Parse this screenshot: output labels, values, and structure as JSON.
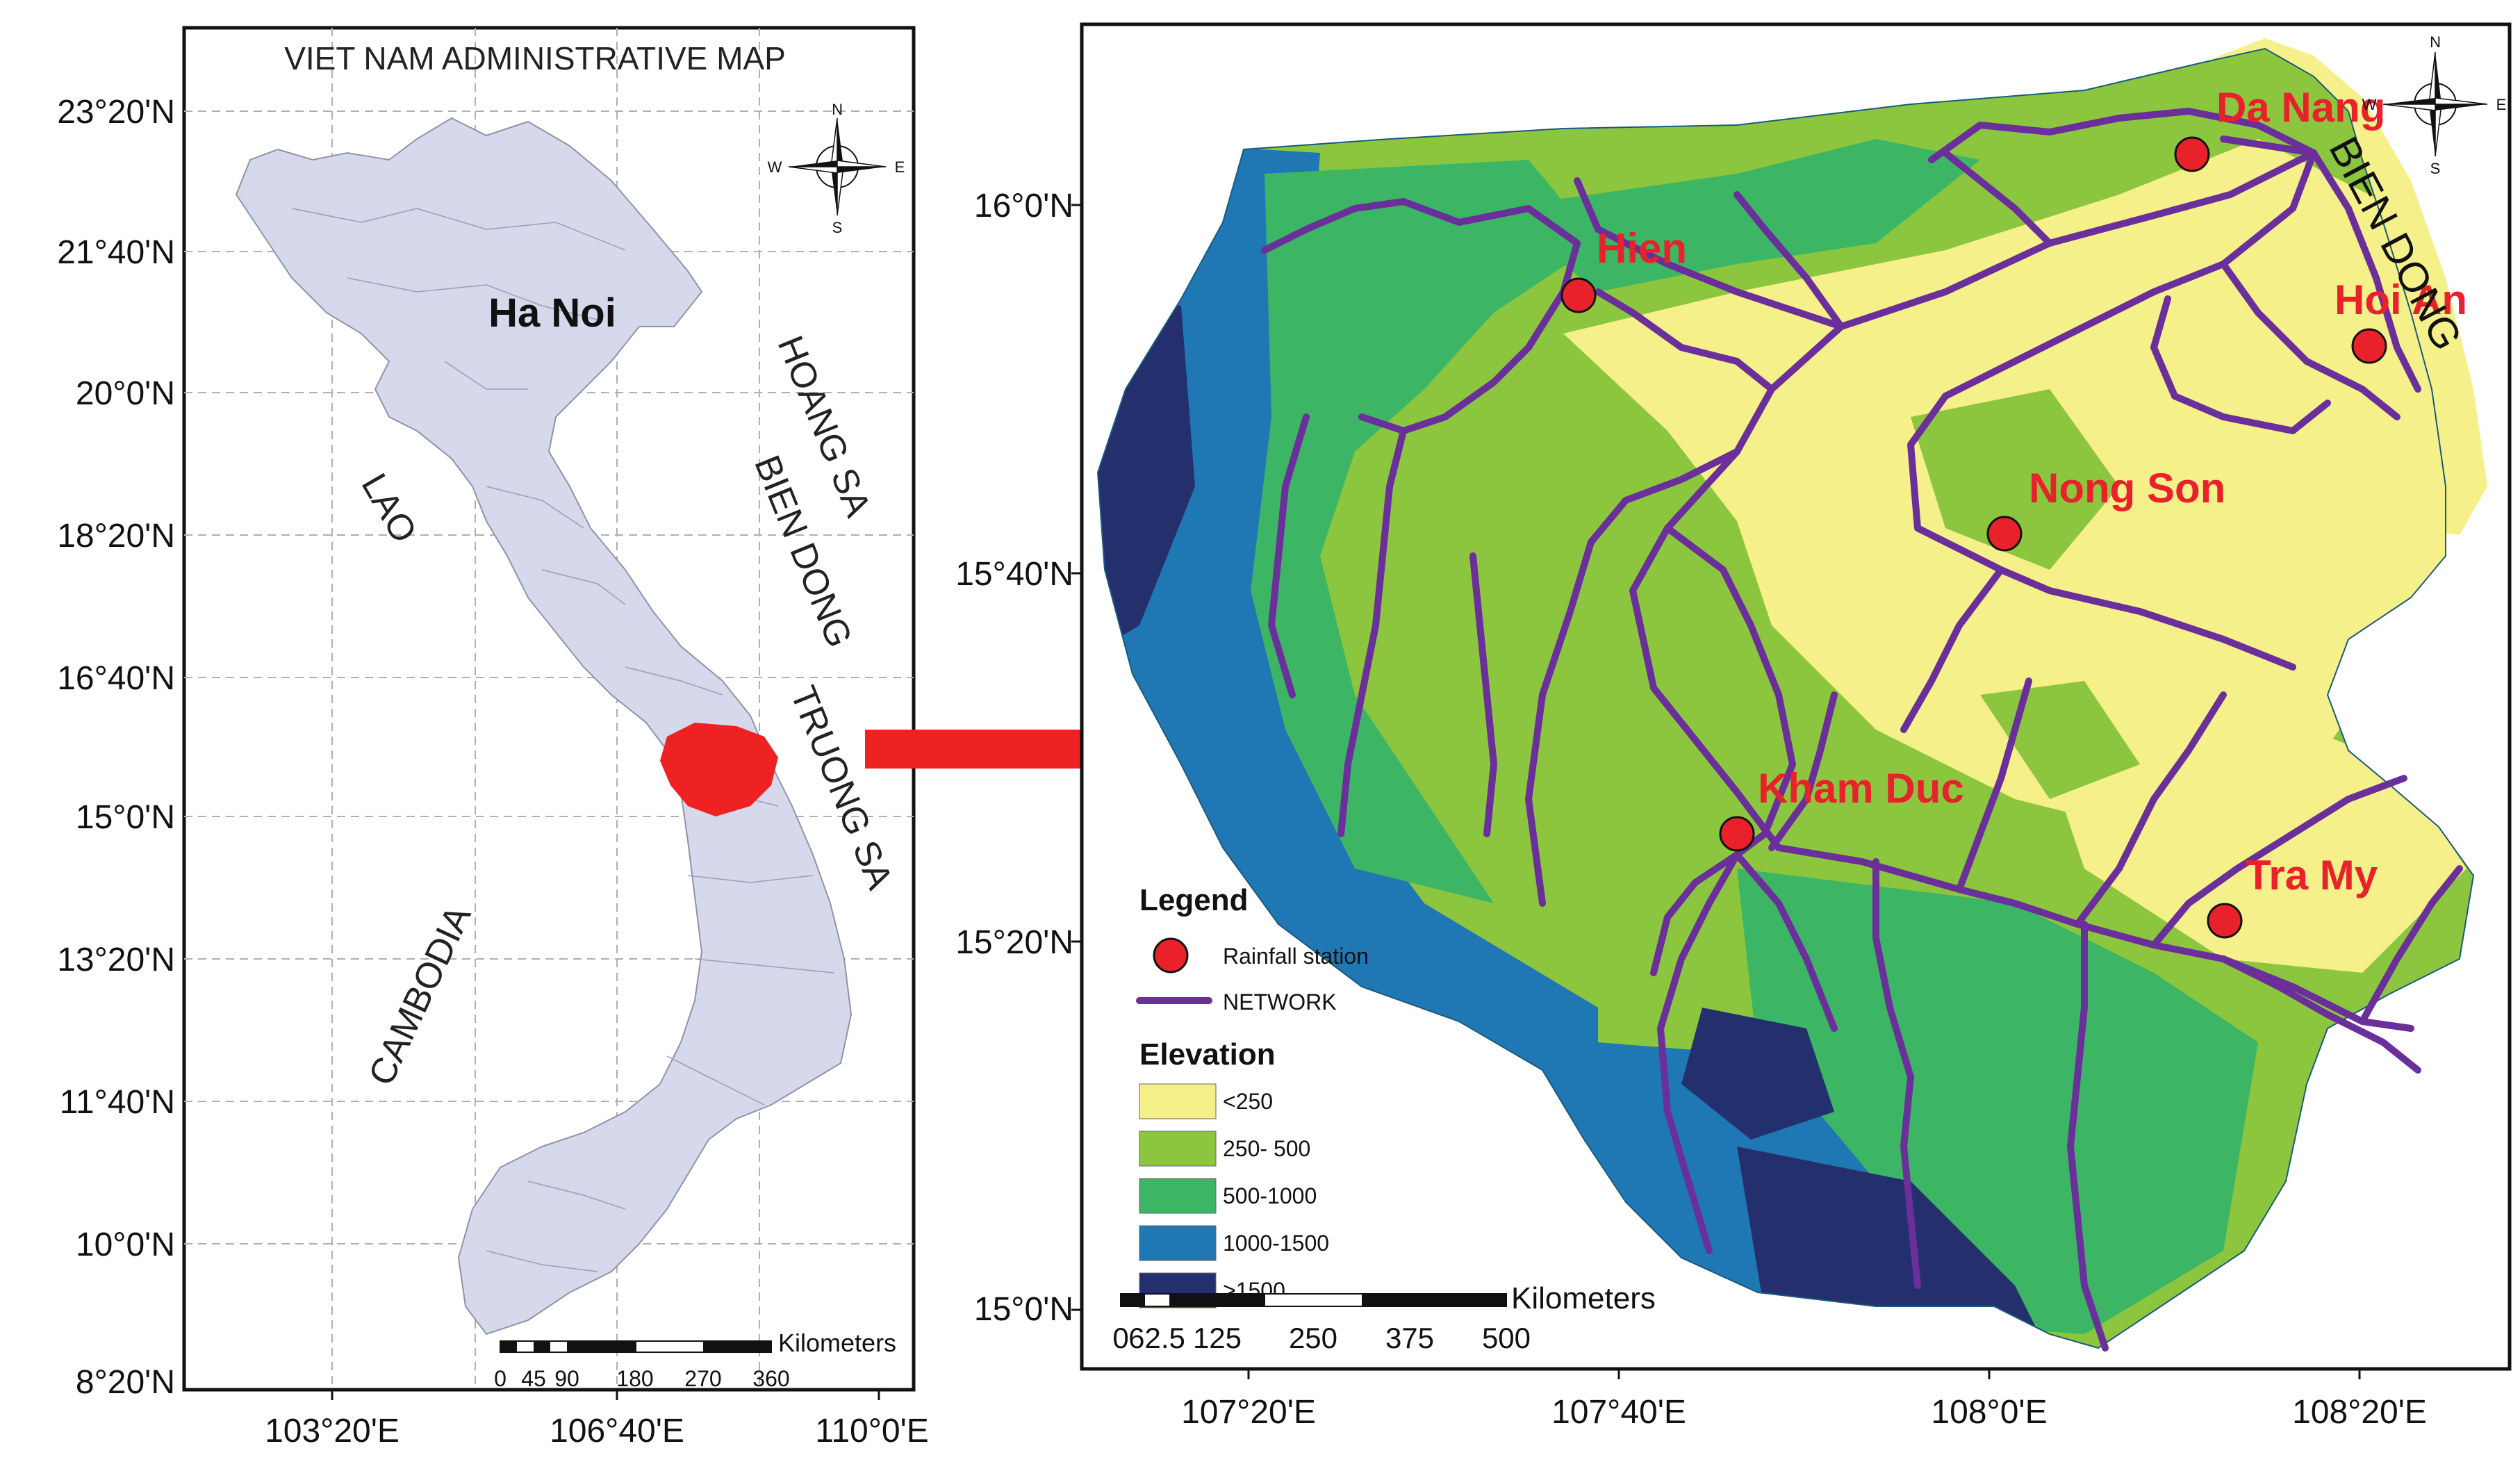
{
  "left_map": {
    "title": "VIET NAM ADMINISTRATIVE MAP",
    "capital_label": "Ha Noi",
    "lat_labels": [
      "23°20'N",
      "21°40'N",
      "20°0'N",
      "18°20'N",
      "16°40'N",
      "15°0'N",
      "13°20'N",
      "11°40'N",
      "10°0'N",
      "8°20'N"
    ],
    "lon_labels": [
      "103°20'E",
      "106°40'E",
      "110°0'E"
    ],
    "region_labels": {
      "lao": "LAO",
      "cambodia": "CAMBODIA",
      "hoang_sa": "HOANG SA",
      "bien_dong": "BIEN DONG",
      "truong_sa": "TRUONG SA"
    },
    "scalebar": {
      "unit": "Kilometers",
      "ticks": [
        "0",
        "45",
        "90",
        "180",
        "270",
        "360"
      ]
    },
    "compass": {
      "n": "N",
      "s": "S",
      "e": "E",
      "w": "W"
    },
    "land_color": "#d6d9ec",
    "highlight_color": "#ee2222"
  },
  "right_map": {
    "lat_labels": [
      "16°0'N",
      "15°40'N",
      "15°20'N",
      "15°0'N"
    ],
    "lon_labels": [
      "107°20'E",
      "107°40'E",
      "108°0'E",
      "108°20'E"
    ],
    "sea_label": "BIEN DONG",
    "stations": [
      {
        "name": "Da Nang"
      },
      {
        "name": "Hien"
      },
      {
        "name": "Hoi An"
      },
      {
        "name": "Nong Son"
      },
      {
        "name": "Kham Duc"
      },
      {
        "name": "Tra My"
      }
    ],
    "compass": {
      "n": "N",
      "s": "S",
      "e": "E",
      "w": "W"
    },
    "scalebar": {
      "unit": "Kilometers",
      "ticks": [
        "0",
        "62.5",
        "125",
        "250",
        "375",
        "500"
      ]
    },
    "legend": {
      "title": "Legend",
      "station_label": "Rainfall station",
      "network_label": "NETWORK",
      "elevation_title": "Elevation",
      "classes": [
        {
          "label": "<250",
          "color": "#f5f08a"
        },
        {
          "label": "250- 500",
          "color": "#8cc63f"
        },
        {
          "label": "500-1000",
          "color": "#3cb664"
        },
        {
          "label": "1000-1500",
          "color": "#1f77b4"
        },
        {
          "label": ">1500",
          "color": "#24306e"
        }
      ]
    },
    "station_color": "#e8212a",
    "river_color": "#6a2f9a"
  }
}
